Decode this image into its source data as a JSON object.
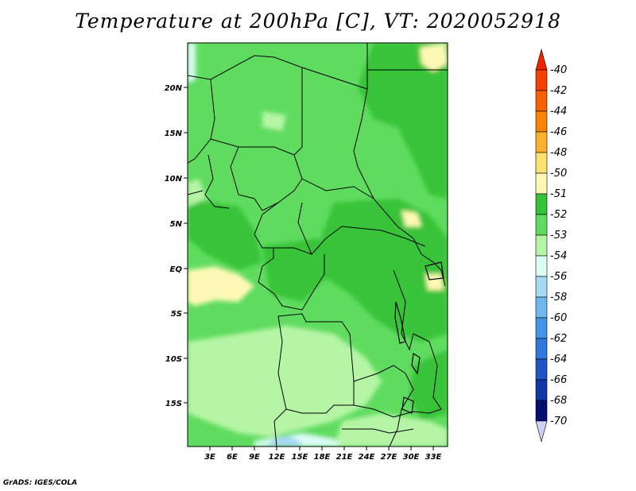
{
  "title": "Temperature at 200hPa [C], VT: 2020052918",
  "credit": "GrADS: IGES/COLA",
  "map": {
    "lat_labels": [
      "20N",
      "15N",
      "10N",
      "5N",
      "EQ",
      "5S",
      "10S",
      "15S"
    ],
    "lon_labels": [
      "3E",
      "6E",
      "9E",
      "12E",
      "15E",
      "18E",
      "21E",
      "24E",
      "27E",
      "30E",
      "33E"
    ]
  },
  "colorbar": {
    "levels": [
      "-40",
      "-42",
      "-44",
      "-46",
      "-48",
      "-50",
      "-51",
      "-52",
      "-53",
      "-54",
      "-56",
      "-58",
      "-60",
      "-62",
      "-64",
      "-66",
      "-68",
      "-70"
    ],
    "colors": [
      "#f22200",
      "#f84000",
      "#f96200",
      "#fb8500",
      "#fdb12d",
      "#fde26e",
      "#fdf9b5",
      "#37c337",
      "#5fdc5f",
      "#b6f5a5",
      "#dcfcf6",
      "#a6d9f4",
      "#6fb8ee",
      "#4495e6",
      "#2f79dd",
      "#1e56c4",
      "#1037a8",
      "#040f70",
      "#d0d0f6"
    ]
  }
}
